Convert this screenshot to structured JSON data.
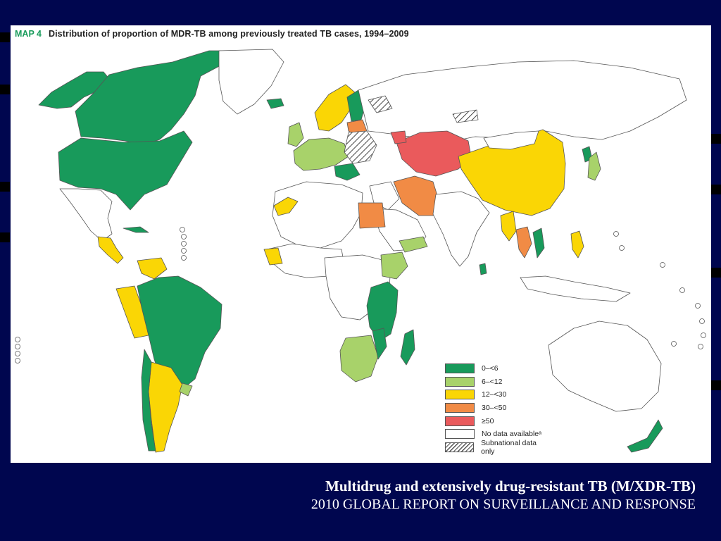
{
  "map": {
    "tag": "MAP 4",
    "title": "Distribution of proportion of MDR-TB among previously treated TB cases, 1994–2009"
  },
  "legend": {
    "items": [
      {
        "label": "0–<6",
        "color": "#189a5b"
      },
      {
        "label": "6–<12",
        "color": "#a8d26a"
      },
      {
        "label": "12–<30",
        "color": "#fad605"
      },
      {
        "label": "30–<50",
        "color": "#f18b45"
      },
      {
        "label": "≥50",
        "color": "#ea5a5c"
      },
      {
        "label": "No data availableᵃ",
        "color": "#ffffff"
      },
      {
        "label": "Subnational data only",
        "color": "hatch"
      }
    ]
  },
  "caption": {
    "title": "Multidrug and extensively drug-resistant TB (M/XDR-TB)",
    "subtitle": "2010 GLOBAL REPORT ON SURVEILLANCE AND RESPONSE"
  },
  "colors": {
    "background": "#00064f",
    "panel": "#ffffff",
    "c0_6": "#189a5b",
    "c6_12": "#a8d26a",
    "c12_30": "#fad605",
    "c30_50": "#f18b45",
    "c50": "#ea5a5c",
    "nodata": "#ffffff",
    "border": "#555555"
  }
}
